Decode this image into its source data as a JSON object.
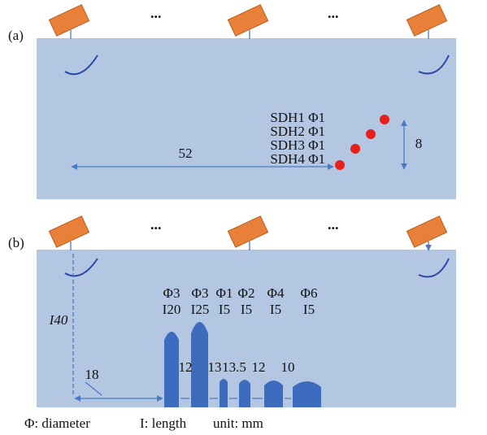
{
  "panel_a": {
    "label": "(a)",
    "ellipses": [
      "...",
      "..."
    ],
    "holes": [
      "SDH1 Φ1",
      "SDH2 Φ1",
      "SDH3 Φ1",
      "SDH4 Φ1"
    ],
    "horizontal_distance": "52",
    "vertical_distance": "8"
  },
  "panel_b": {
    "label": "(b)",
    "ellipses": [
      "...",
      "..."
    ],
    "depth": "I40",
    "offset": "18",
    "holes": [
      {
        "diameter": "Φ3",
        "length": "I20"
      },
      {
        "diameter": "Φ3",
        "length": "I25"
      },
      {
        "diameter": "Φ1",
        "length": "I5"
      },
      {
        "diameter": "Φ2",
        "length": "I5"
      },
      {
        "diameter": "Φ4",
        "length": "I5"
      },
      {
        "diameter": "Φ6",
        "length": "I5"
      }
    ],
    "spacings": [
      "12",
      "13",
      "13.5",
      "12",
      "10"
    ]
  },
  "legend": {
    "diameter": "Φ: diameter",
    "length": "I: length",
    "unit": "unit: mm"
  }
}
